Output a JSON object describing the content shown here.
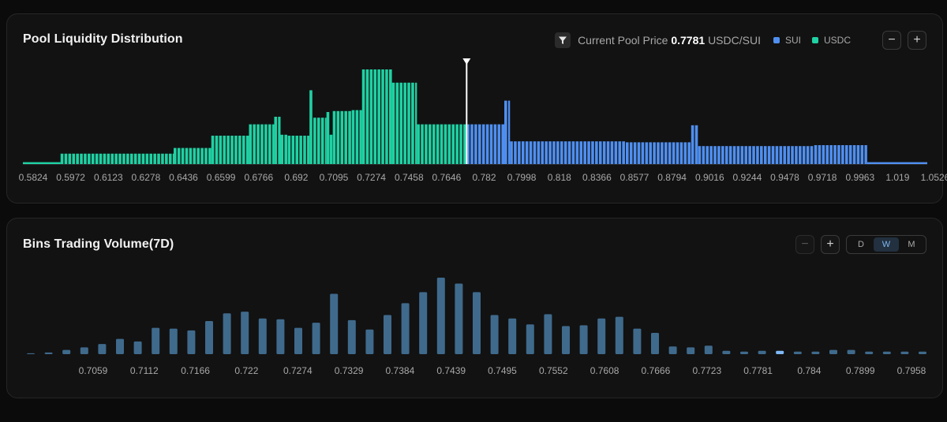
{
  "liquidity": {
    "title": "Pool Liquidity Distribution",
    "price_label": "Current Pool Price",
    "price_value": "0.7781",
    "price_unit": "USDC/SUI",
    "legend": [
      {
        "label": "SUI",
        "color": "#4f8ff0"
      },
      {
        "label": "USDC",
        "color": "#1fd1a3"
      }
    ],
    "zoom_out": "−",
    "zoom_in": "+"
  },
  "volume": {
    "title": "Bins Trading Volume(7D)",
    "zoom_out": "−",
    "zoom_in": "+",
    "ranges": [
      "D",
      "W",
      "M"
    ],
    "active_range": "W"
  },
  "chart_data": [
    {
      "type": "bar",
      "title": "Pool Liquidity Distribution",
      "x_ticks": [
        "0.5824",
        "0.5972",
        "0.6123",
        "0.6278",
        "0.6436",
        "0.6599",
        "0.6766",
        "0.692",
        "0.7095",
        "0.7274",
        "0.7458",
        "0.7646",
        "0.782",
        "0.7998",
        "0.818",
        "0.8366",
        "0.8577",
        "0.8794",
        "0.9016",
        "0.9244",
        "0.9478",
        "0.9718",
        "0.9963",
        "1.019",
        "1.0526"
      ],
      "current_price": 0.7781,
      "series": [
        {
          "name": "USDC",
          "color": "#1fd1a3",
          "segments": [
            {
              "x_from": 0.5824,
              "x_to": 0.5972,
              "value": 2,
              "step": 99
            },
            {
              "x_from": 0.5972,
              "x_to": 0.6436,
              "value": 11
            },
            {
              "x_from": 0.6436,
              "x_to": 0.6599,
              "value": 17
            },
            {
              "x_from": 0.6599,
              "x_to": 0.6766,
              "value": 30
            },
            {
              "x_from": 0.6766,
              "x_to": 0.6869,
              "value": 42
            },
            {
              "x_from": 0.6869,
              "x_to": 0.6895,
              "value": 50
            },
            {
              "x_from": 0.6895,
              "x_to": 0.6925,
              "value": 31
            },
            {
              "x_from": 0.6925,
              "x_to": 0.7026,
              "value": 30
            },
            {
              "x_from": 0.7026,
              "x_to": 0.7044,
              "value": 78
            },
            {
              "x_from": 0.7044,
              "x_to": 0.7105,
              "value": 49
            },
            {
              "x_from": 0.7105,
              "x_to": 0.712,
              "value": 55
            },
            {
              "x_from": 0.712,
              "x_to": 0.7135,
              "value": 31
            },
            {
              "x_from": 0.7135,
              "x_to": 0.7225,
              "value": 56
            },
            {
              "x_from": 0.7225,
              "x_to": 0.7274,
              "value": 57
            },
            {
              "x_from": 0.7274,
              "x_to": 0.742,
              "value": 100
            },
            {
              "x_from": 0.742,
              "x_to": 0.7544,
              "value": 86
            },
            {
              "x_from": 0.7544,
              "x_to": 0.7781,
              "value": 42
            }
          ]
        },
        {
          "name": "SUI",
          "color": "#4f8ff0",
          "segments": [
            {
              "x_from": 0.7781,
              "x_to": 0.7958,
              "value": 42
            },
            {
              "x_from": 0.7958,
              "x_to": 0.7985,
              "value": 67
            },
            {
              "x_from": 0.7985,
              "x_to": 0.8577,
              "value": 24
            },
            {
              "x_from": 0.8577,
              "x_to": 0.8957,
              "value": 23
            },
            {
              "x_from": 0.8957,
              "x_to": 0.8998,
              "value": 41
            },
            {
              "x_from": 0.8998,
              "x_to": 0.9718,
              "value": 19
            },
            {
              "x_from": 0.9718,
              "x_to": 1.0055,
              "value": 20
            },
            {
              "x_from": 1.0055,
              "x_to": 1.0526,
              "value": 2,
              "step": 99
            }
          ]
        }
      ]
    },
    {
      "type": "bar",
      "title": "Bins Trading Volume(7D)",
      "x_ticks": [
        "0.7059",
        "0.7112",
        "0.7166",
        "0.722",
        "0.7274",
        "0.7329",
        "0.7384",
        "0.7439",
        "0.7495",
        "0.7552",
        "0.7608",
        "0.7666",
        "0.7723",
        "0.7781",
        "0.784",
        "0.7899",
        "0.7958"
      ],
      "highlight_index": 42,
      "values": [
        1,
        2,
        5,
        8,
        12,
        18,
        15,
        31,
        30,
        28,
        39,
        48,
        50,
        42,
        41,
        31,
        37,
        71,
        40,
        29,
        46,
        60,
        73,
        90,
        83,
        73,
        46,
        42,
        35,
        47,
        33,
        34,
        42,
        44,
        30,
        25,
        9,
        8,
        10,
        4,
        3,
        4,
        4,
        3,
        3,
        5,
        5,
        3,
        3,
        3,
        3
      ]
    }
  ]
}
